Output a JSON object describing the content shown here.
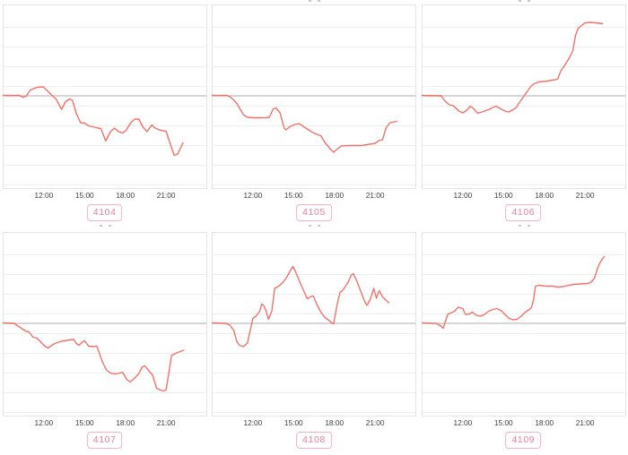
{
  "page": {
    "background": "#ffffff",
    "description": "2x3 grid of small time-series line charts, each with a cropped-off title, a gray zero baseline and a pink id badge below"
  },
  "colors": {
    "line": "#f4716b",
    "zero_line": "#c9c9c9",
    "grid_line": "#efefef",
    "panel_border": "#e4e4e4",
    "tick_text": "#3d3d3d",
    "chip_text": "#ee7f9f",
    "chip_border": "#f5b3c6",
    "chip_background": "#ffffff"
  },
  "axis": {
    "x_range_hours": [
      9,
      24
    ],
    "tick_hours": [
      12,
      15,
      18,
      21
    ],
    "tick_labels": [
      "12:00",
      "15:00",
      "18:00",
      "21:00"
    ],
    "y_axis_labels_shown": false,
    "baseline_value": 0,
    "grid": "horizontal-only"
  },
  "chart_data": [
    {
      "type": "line",
      "label": "4104",
      "title": "",
      "x_unit": "time-of-day (hours)",
      "y_unit": "relative (no axis labels shown, baseline = 0)",
      "points": [
        [
          9.0,
          0.5
        ],
        [
          10.2,
          0.5
        ],
        [
          10.45,
          -1.5
        ],
        [
          10.7,
          -0.5
        ],
        [
          11.0,
          6.5
        ],
        [
          11.5,
          9.5
        ],
        [
          11.95,
          10
        ],
        [
          12.3,
          5
        ],
        [
          12.6,
          0.5
        ],
        [
          12.9,
          -3.5
        ],
        [
          13.3,
          -15
        ],
        [
          13.6,
          -6.5
        ],
        [
          13.9,
          -3.5
        ],
        [
          14.1,
          -5
        ],
        [
          14.4,
          -20
        ],
        [
          14.7,
          -30
        ],
        [
          15.0,
          -30.5
        ],
        [
          15.3,
          -33.5
        ],
        [
          16.0,
          -36
        ],
        [
          16.2,
          -36.5
        ],
        [
          16.55,
          -50.5
        ],
        [
          16.9,
          -40
        ],
        [
          17.2,
          -36
        ],
        [
          17.5,
          -40
        ],
        [
          17.8,
          -41.5
        ],
        [
          18.05,
          -38.5
        ],
        [
          18.4,
          -30
        ],
        [
          18.7,
          -26
        ],
        [
          19.0,
          -26
        ],
        [
          19.3,
          -35
        ],
        [
          19.6,
          -40
        ],
        [
          19.95,
          -32.5
        ],
        [
          20.2,
          -36
        ],
        [
          20.6,
          -38.5
        ],
        [
          21.0,
          -39.5
        ],
        [
          21.2,
          -48.5
        ],
        [
          21.6,
          -66.5
        ],
        [
          21.85,
          -65
        ],
        [
          22.25,
          -52.5
        ]
      ]
    },
    {
      "type": "line",
      "label": "4105",
      "title": "",
      "x_unit": "time-of-day (hours)",
      "y_unit": "relative (no axis labels shown, baseline = 0)",
      "points": [
        [
          9.0,
          0.5
        ],
        [
          10.1,
          0.5
        ],
        [
          10.4,
          -2
        ],
        [
          10.8,
          -8
        ],
        [
          11.3,
          -21
        ],
        [
          11.6,
          -24
        ],
        [
          12.0,
          -24.5
        ],
        [
          13.0,
          -24.5
        ],
        [
          13.2,
          -24
        ],
        [
          13.5,
          -14.5
        ],
        [
          13.7,
          -13.5
        ],
        [
          14.0,
          -19
        ],
        [
          14.3,
          -36
        ],
        [
          14.45,
          -38
        ],
        [
          14.7,
          -34.5
        ],
        [
          15.1,
          -32
        ],
        [
          15.4,
          -31
        ],
        [
          15.9,
          -36
        ],
        [
          16.4,
          -41
        ],
        [
          16.8,
          -43.5
        ],
        [
          17.0,
          -44.5
        ],
        [
          17.3,
          -52
        ],
        [
          17.7,
          -59.5
        ],
        [
          17.95,
          -63
        ],
        [
          18.2,
          -59.5
        ],
        [
          18.5,
          -56
        ],
        [
          19.0,
          -55.5
        ],
        [
          20.0,
          -55.5
        ],
        [
          20.4,
          -54.5
        ],
        [
          21.0,
          -53
        ],
        [
          21.3,
          -50
        ],
        [
          21.55,
          -49
        ],
        [
          21.8,
          -36
        ],
        [
          22.1,
          -30
        ],
        [
          22.6,
          -28.5
        ]
      ]
    },
    {
      "type": "line",
      "label": "4106",
      "title": "",
      "x_unit": "time-of-day (hours)",
      "y_unit": "relative (no axis labels shown, baseline = 0)",
      "points": [
        [
          9.0,
          0.5
        ],
        [
          10.4,
          0
        ],
        [
          10.7,
          -6
        ],
        [
          11.0,
          -10
        ],
        [
          11.3,
          -11
        ],
        [
          11.7,
          -17
        ],
        [
          12.0,
          -19
        ],
        [
          12.3,
          -16
        ],
        [
          12.55,
          -11.5
        ],
        [
          12.8,
          -14.5
        ],
        [
          13.1,
          -19.5
        ],
        [
          13.4,
          -18
        ],
        [
          13.9,
          -15.5
        ],
        [
          14.2,
          -13
        ],
        [
          14.45,
          -11.5
        ],
        [
          14.8,
          -14.5
        ],
        [
          15.1,
          -17
        ],
        [
          15.4,
          -18
        ],
        [
          15.9,
          -13.5
        ],
        [
          16.3,
          -4.5
        ],
        [
          16.55,
          0.5
        ],
        [
          16.7,
          4
        ],
        [
          17.0,
          10.5
        ],
        [
          17.3,
          14
        ],
        [
          17.6,
          15.5
        ],
        [
          18.2,
          16.5
        ],
        [
          18.8,
          18
        ],
        [
          19.0,
          19
        ],
        [
          19.2,
          27.5
        ],
        [
          19.5,
          34
        ],
        [
          19.85,
          42.5
        ],
        [
          20.1,
          50.5
        ],
        [
          20.3,
          67.5
        ],
        [
          20.5,
          75.5
        ],
        [
          20.7,
          78
        ],
        [
          21.0,
          81.5
        ],
        [
          21.4,
          82
        ],
        [
          21.8,
          81.5
        ],
        [
          22.3,
          80.5
        ]
      ]
    },
    {
      "type": "line",
      "label": "4107",
      "title": "",
      "x_unit": "time-of-day (hours)",
      "y_unit": "relative (no axis labels shown, baseline = 0)",
      "points": [
        [
          9.0,
          0.5
        ],
        [
          9.8,
          0
        ],
        [
          10.1,
          -3
        ],
        [
          10.7,
          -9
        ],
        [
          10.9,
          -9.5
        ],
        [
          11.2,
          -15.5
        ],
        [
          11.5,
          -16.5
        ],
        [
          12.0,
          -24.5
        ],
        [
          12.3,
          -27.5
        ],
        [
          12.8,
          -22.5
        ],
        [
          13.3,
          -20
        ],
        [
          13.9,
          -18.5
        ],
        [
          14.2,
          -18
        ],
        [
          14.4,
          -22.5
        ],
        [
          14.6,
          -24.5
        ],
        [
          14.85,
          -20.5
        ],
        [
          15.0,
          -19.5
        ],
        [
          15.3,
          -25.5
        ],
        [
          15.6,
          -26
        ],
        [
          15.9,
          -25.5
        ],
        [
          16.3,
          -42.5
        ],
        [
          16.6,
          -52
        ],
        [
          16.9,
          -55.5
        ],
        [
          17.3,
          -56.5
        ],
        [
          17.55,
          -55.5
        ],
        [
          17.8,
          -54.5
        ],
        [
          18.1,
          -62.5
        ],
        [
          18.35,
          -65.5
        ],
        [
          18.7,
          -61
        ],
        [
          19.0,
          -56
        ],
        [
          19.25,
          -48.5
        ],
        [
          19.45,
          -47.5
        ],
        [
          19.7,
          -52.5
        ],
        [
          20.0,
          -57.5
        ],
        [
          20.3,
          -72.5
        ],
        [
          20.6,
          -74.5
        ],
        [
          20.8,
          -75.5
        ],
        [
          21.0,
          -74.5
        ],
        [
          21.2,
          -56
        ],
        [
          21.4,
          -36
        ],
        [
          21.7,
          -33.5
        ],
        [
          22.3,
          -30
        ]
      ]
    },
    {
      "type": "line",
      "label": "4108",
      "title": "",
      "x_unit": "time-of-day (hours)",
      "y_unit": "relative (no axis labels shown, baseline = 0)",
      "points": [
        [
          9.0,
          0.5
        ],
        [
          10.0,
          0
        ],
        [
          10.3,
          -2
        ],
        [
          10.6,
          -8
        ],
        [
          10.8,
          -19.5
        ],
        [
          11.0,
          -24.5
        ],
        [
          11.3,
          -26
        ],
        [
          11.6,
          -22
        ],
        [
          11.8,
          -8
        ],
        [
          12.0,
          5.5
        ],
        [
          12.2,
          7.5
        ],
        [
          12.5,
          13.5
        ],
        [
          12.65,
          21.5
        ],
        [
          12.8,
          20
        ],
        [
          13.0,
          12.5
        ],
        [
          13.15,
          4.5
        ],
        [
          13.4,
          14
        ],
        [
          13.6,
          39
        ],
        [
          13.9,
          41.5
        ],
        [
          14.2,
          45.5
        ],
        [
          14.5,
          51.5
        ],
        [
          14.7,
          57.5
        ],
        [
          14.95,
          63.5
        ],
        [
          15.1,
          59
        ],
        [
          15.5,
          44.5
        ],
        [
          15.8,
          34.5
        ],
        [
          16.0,
          27.5
        ],
        [
          16.3,
          30
        ],
        [
          16.45,
          30.5
        ],
        [
          16.7,
          21.5
        ],
        [
          17.0,
          12.5
        ],
        [
          17.3,
          6.5
        ],
        [
          17.6,
          3.5
        ],
        [
          17.8,
          0.5
        ],
        [
          17.95,
          -0.5
        ],
        [
          18.2,
          20.5
        ],
        [
          18.4,
          34
        ],
        [
          18.65,
          37.5
        ],
        [
          19.0,
          45.5
        ],
        [
          19.25,
          54
        ],
        [
          19.4,
          55.5
        ],
        [
          19.7,
          45.5
        ],
        [
          19.95,
          35.5
        ],
        [
          20.2,
          25.5
        ],
        [
          20.4,
          20
        ],
        [
          20.65,
          27
        ],
        [
          20.9,
          39
        ],
        [
          21.1,
          28
        ],
        [
          21.3,
          36.5
        ],
        [
          21.55,
          29.5
        ],
        [
          22.0,
          23
        ]
      ]
    },
    {
      "type": "line",
      "label": "4109",
      "title": "",
      "x_unit": "time-of-day (hours)",
      "y_unit": "relative (no axis labels shown, baseline = 0)",
      "points": [
        [
          9.0,
          0.5
        ],
        [
          10.0,
          0
        ],
        [
          10.35,
          -2.5
        ],
        [
          10.55,
          -5.5
        ],
        [
          10.7,
          1.5
        ],
        [
          10.9,
          10.5
        ],
        [
          11.1,
          11.5
        ],
        [
          11.4,
          13.5
        ],
        [
          11.65,
          18
        ],
        [
          12.0,
          16.5
        ],
        [
          12.2,
          10
        ],
        [
          12.5,
          10.5
        ],
        [
          12.7,
          12.5
        ],
        [
          13.0,
          9
        ],
        [
          13.3,
          8
        ],
        [
          13.6,
          10
        ],
        [
          13.9,
          13.5
        ],
        [
          14.2,
          15.5
        ],
        [
          14.5,
          16.5
        ],
        [
          14.8,
          14.5
        ],
        [
          15.1,
          10
        ],
        [
          15.4,
          5.5
        ],
        [
          15.7,
          4
        ],
        [
          16.0,
          4.5
        ],
        [
          16.3,
          8
        ],
        [
          16.6,
          12.5
        ],
        [
          16.9,
          15.5
        ],
        [
          17.05,
          17.5
        ],
        [
          17.2,
          25.5
        ],
        [
          17.35,
          41.5
        ],
        [
          17.6,
          42.5
        ],
        [
          18.1,
          41.5
        ],
        [
          18.6,
          41.5
        ],
        [
          19.0,
          40.5
        ],
        [
          19.4,
          41
        ],
        [
          19.8,
          42.5
        ],
        [
          20.2,
          43.5
        ],
        [
          20.7,
          44
        ],
        [
          21.2,
          44.5
        ],
        [
          21.45,
          46
        ],
        [
          21.7,
          50.5
        ],
        [
          21.9,
          60.5
        ],
        [
          22.1,
          67.5
        ],
        [
          22.4,
          74.5
        ]
      ]
    }
  ]
}
